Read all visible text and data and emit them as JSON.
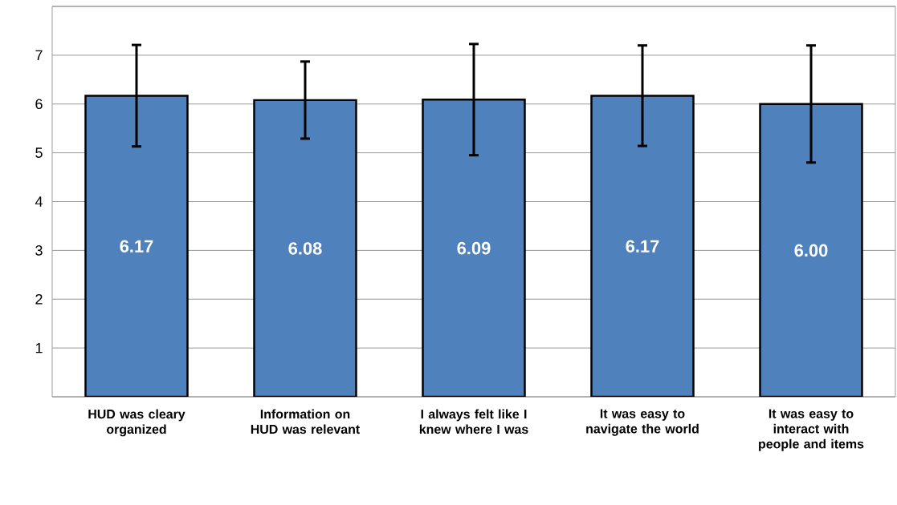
{
  "chart_data": {
    "type": "bar",
    "categories": [
      "HUD was cleary organized",
      "Information on HUD was relevant",
      "I always felt like I knew where I was",
      "It was easy to navigate the world",
      "It was easy to interact with people and items"
    ],
    "values": [
      6.17,
      6.08,
      6.09,
      6.17,
      6.0
    ],
    "value_labels": [
      "6.17",
      "6.08",
      "6.09",
      "6.17",
      "6.00"
    ],
    "errors": [
      1.04,
      0.79,
      1.14,
      1.03,
      1.2
    ],
    "color": "#4f81bd",
    "ylim": [
      0,
      8
    ],
    "yticks": [
      {
        "value": 0,
        "label": null
      },
      1,
      2,
      3,
      4,
      5,
      6,
      7,
      {
        "value": 8,
        "label": null
      }
    ],
    "grid": "y"
  }
}
